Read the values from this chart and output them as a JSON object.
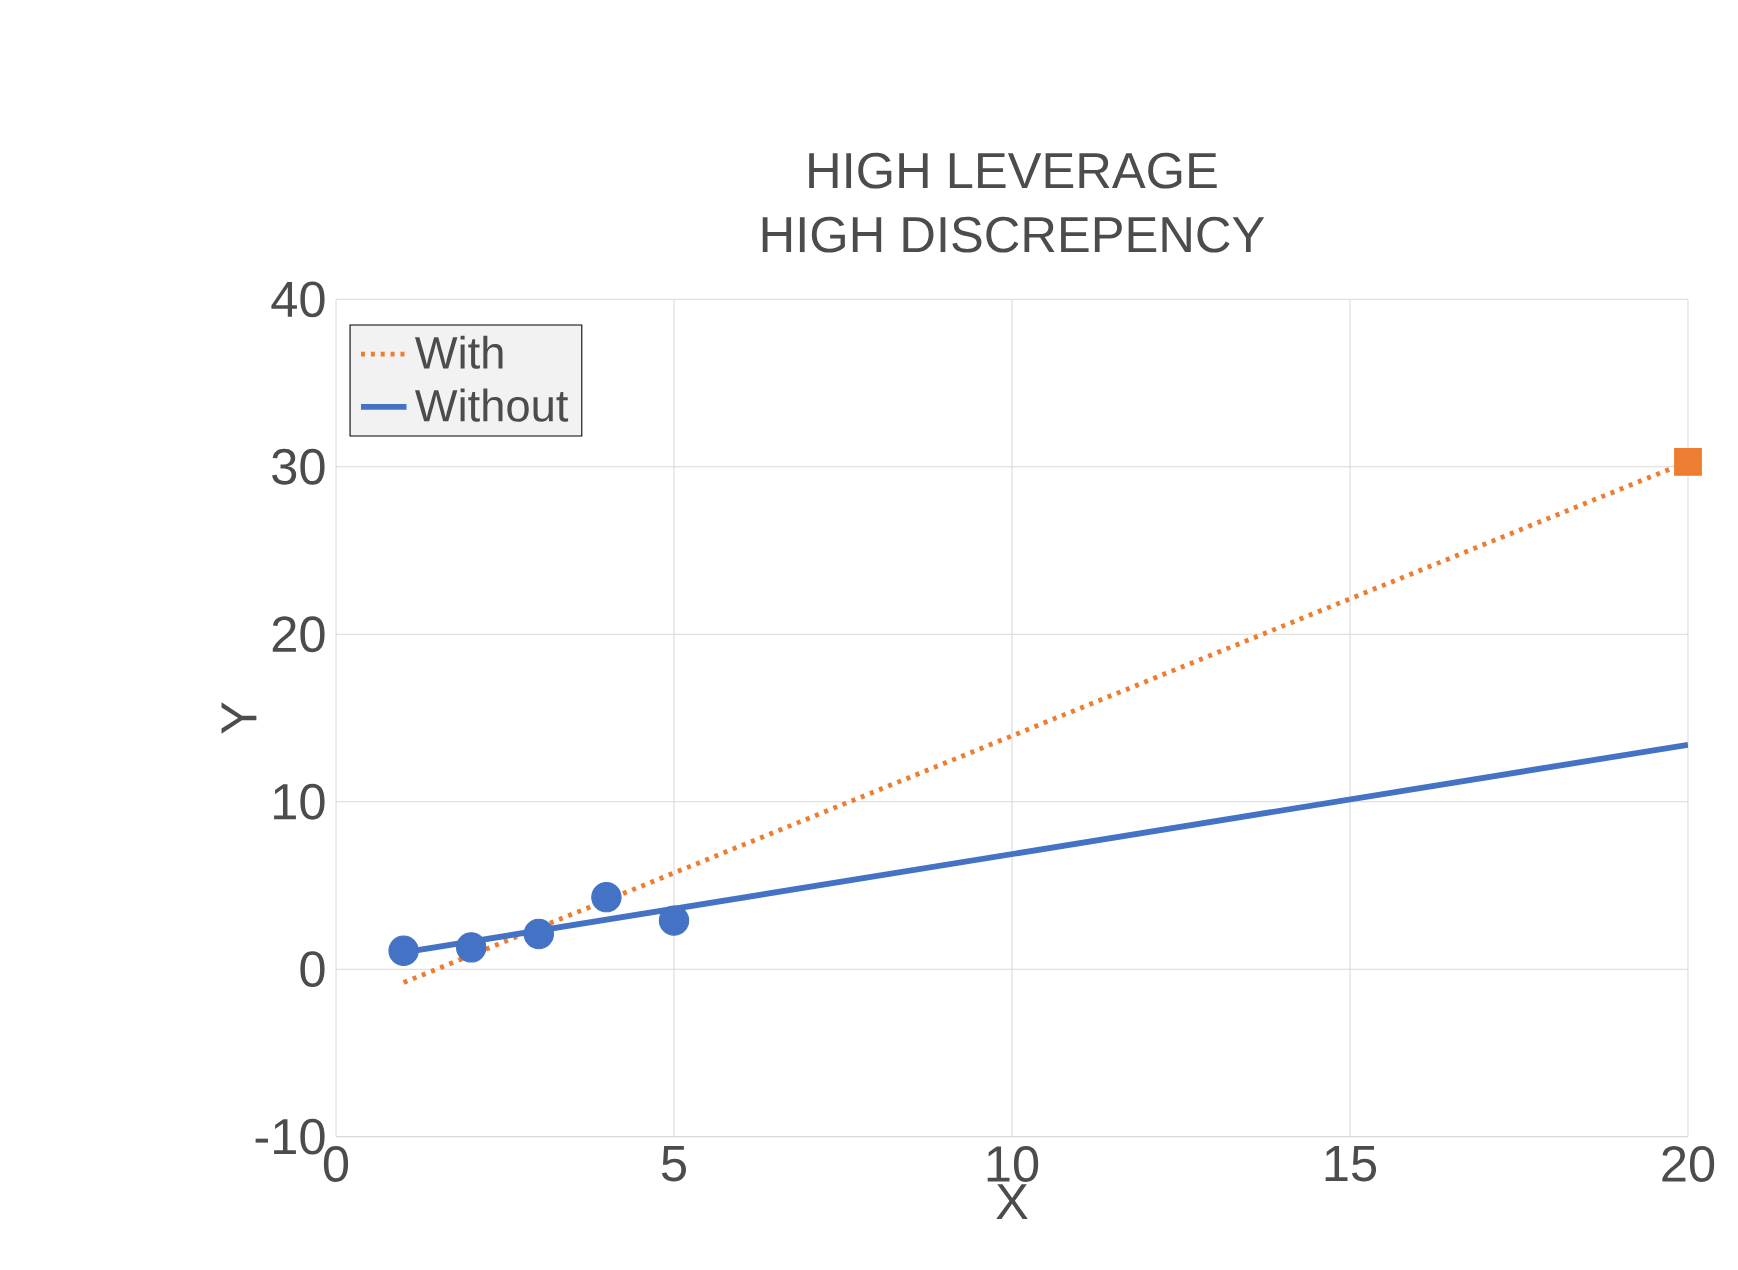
{
  "chart_data": {
    "type": "scatter",
    "title": "HIGH LEVERAGE",
    "subtitle": "HIGH DISCREPENCY",
    "xlabel": "X",
    "ylabel": "Y",
    "series": [
      {
        "color": "#4472c4",
        "marker": "circle",
        "x": [
          1,
          2,
          3,
          4,
          5
        ],
        "values": [
          1.1,
          1.3,
          2.1,
          4.3,
          2.9
        ]
      },
      {
        "color": "#ed7d31",
        "marker": "square",
        "x": [
          20
        ],
        "values": [
          30.3
        ]
      },
      {
        "name": "With",
        "type": "line",
        "color": "#ed7d31",
        "line_style": "dotted",
        "marker": "none",
        "x": [
          1,
          20
        ],
        "values": [
          -0.8,
          30.3
        ]
      },
      {
        "name": "Without",
        "type": "line",
        "color": "#4472c4",
        "line_style": "solid",
        "marker": "none",
        "x": [
          1,
          20
        ],
        "values": [
          1.0,
          13.4
        ]
      }
    ],
    "xlim": [
      0,
      20
    ],
    "ylim": [
      -10,
      40
    ],
    "xticks": [
      0,
      5,
      10,
      15,
      20
    ],
    "yticks": [
      -10,
      0,
      10,
      20,
      30,
      40
    ],
    "grid": true,
    "legend": "top left"
  }
}
